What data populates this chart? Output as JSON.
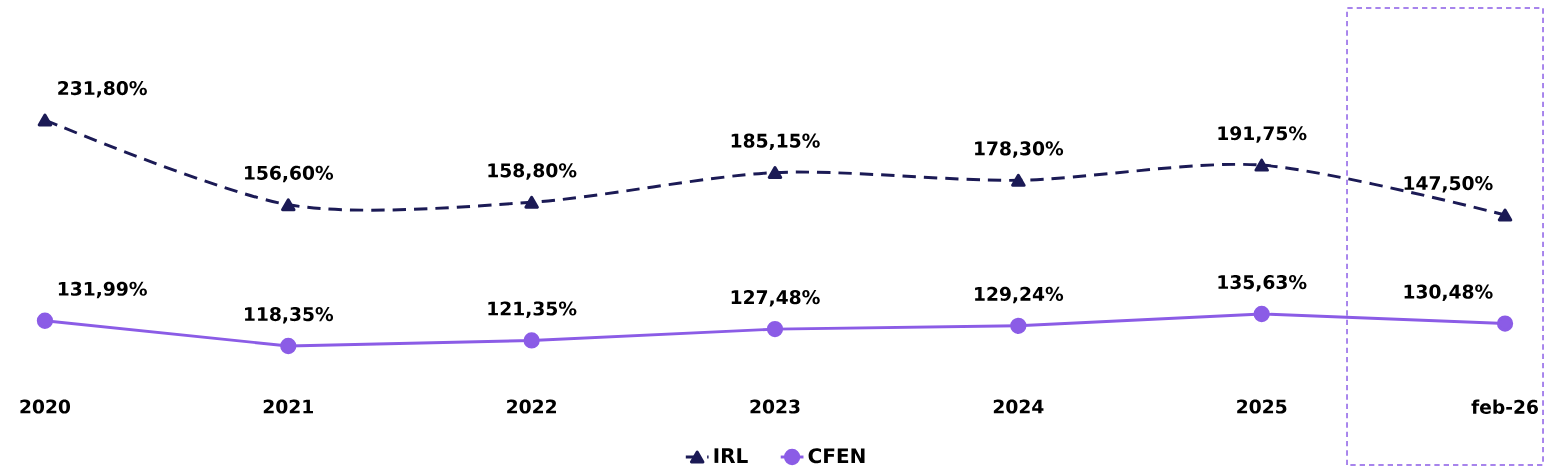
{
  "chart_data": [
    {
      "type": "line",
      "categories": [
        null,
        null,
        null,
        null,
        null,
        null,
        null
      ],
      "tick_labels": false,
      "legend": "bottom",
      "series": [
        {
          "name": "IRL",
          "color": "#1b1a55",
          "values": [
            231.8,
            156.6,
            158.8,
            185.15,
            178.3,
            191.75,
            147.5
          ],
          "value_labels": [
            "231,80%",
            "156,60%",
            "158,80%",
            "185,15%",
            "178,30%",
            "191,75%",
            "147,50%"
          ],
          "marker": "triangle",
          "line_style": "dashed"
        }
      ]
    },
    {
      "type": "line",
      "categories": [
        "2020",
        "2021",
        "2022",
        "2023",
        "2024",
        "2025",
        "feb-26"
      ],
      "tick_labels": "x",
      "legend": "bottom",
      "series": [
        {
          "name": "CFEN",
          "color": "#8b5ce6",
          "values": [
            131.99,
            118.35,
            121.35,
            127.48,
            129.24,
            135.63,
            130.48
          ],
          "value_labels": [
            "131,99%",
            "118,35%",
            "121,35%",
            "127,48%",
            "129,24%",
            "135,63%",
            "130,48%"
          ],
          "marker": "circle",
          "line_style": "solid"
        }
      ]
    }
  ]
}
